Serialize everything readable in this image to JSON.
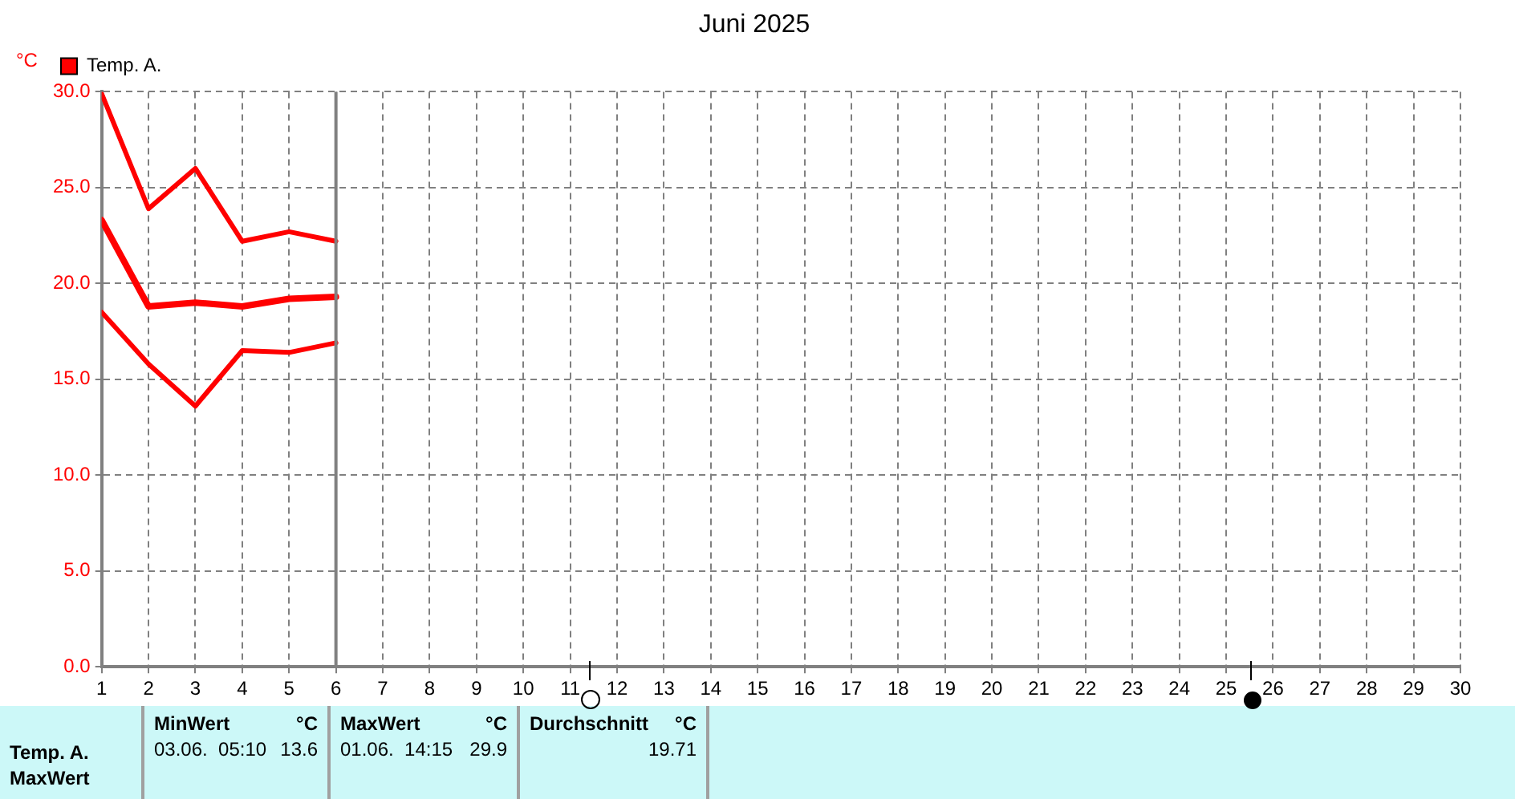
{
  "chart_data": {
    "type": "line",
    "title": "Juni 2025",
    "ylabel": "°C",
    "xlim": [
      1,
      30
    ],
    "xticks": [
      1,
      2,
      3,
      4,
      5,
      6,
      7,
      8,
      9,
      10,
      11,
      12,
      13,
      14,
      15,
      16,
      17,
      18,
      19,
      20,
      21,
      22,
      23,
      24,
      25,
      26,
      27,
      28,
      29,
      30
    ],
    "ylim": [
      0,
      30
    ],
    "yticks": [
      {
        "value": 0,
        "label": "0.0"
      },
      {
        "value": 5,
        "label": "5.0"
      },
      {
        "value": 10,
        "label": "10.0"
      },
      {
        "value": 15,
        "label": "15.0"
      },
      {
        "value": 20,
        "label": "20.0"
      },
      {
        "value": 25,
        "label": "25.0"
      },
      {
        "value": 30,
        "label": "30.0"
      }
    ],
    "grid": true,
    "legend": "top left",
    "marker": "none",
    "line_style": "solid",
    "series": [
      {
        "name": "Temp. A.",
        "color": "#ff0000",
        "x": [
          1,
          2,
          3,
          4,
          5,
          6
        ],
        "values": [
          29.9,
          23.9,
          26.0,
          22.2,
          22.7,
          22.2
        ]
      },
      {
        "color": "#ff0000",
        "x": [
          1,
          2,
          3,
          4,
          5,
          6
        ],
        "values": [
          23.3,
          18.8,
          19.0,
          18.8,
          19.2,
          19.3
        ]
      },
      {
        "color": "#ff0000",
        "x": [
          1,
          2,
          3,
          4,
          5,
          6
        ],
        "values": [
          18.5,
          15.8,
          13.6,
          16.5,
          16.4,
          16.9
        ]
      }
    ],
    "ref_lines": [
      {
        "axis": "x",
        "value": 6,
        "color": "#808080"
      }
    ],
    "annotations": [
      "Temp. A.",
      "MaxWert",
      "MinWert",
      "°C",
      "03.06.  05:10",
      "13.6",
      "MaxWert",
      "°C",
      "01.06.  14:15",
      "29.9",
      "Durchschnitt",
      "°C",
      "19.71"
    ]
  }
}
